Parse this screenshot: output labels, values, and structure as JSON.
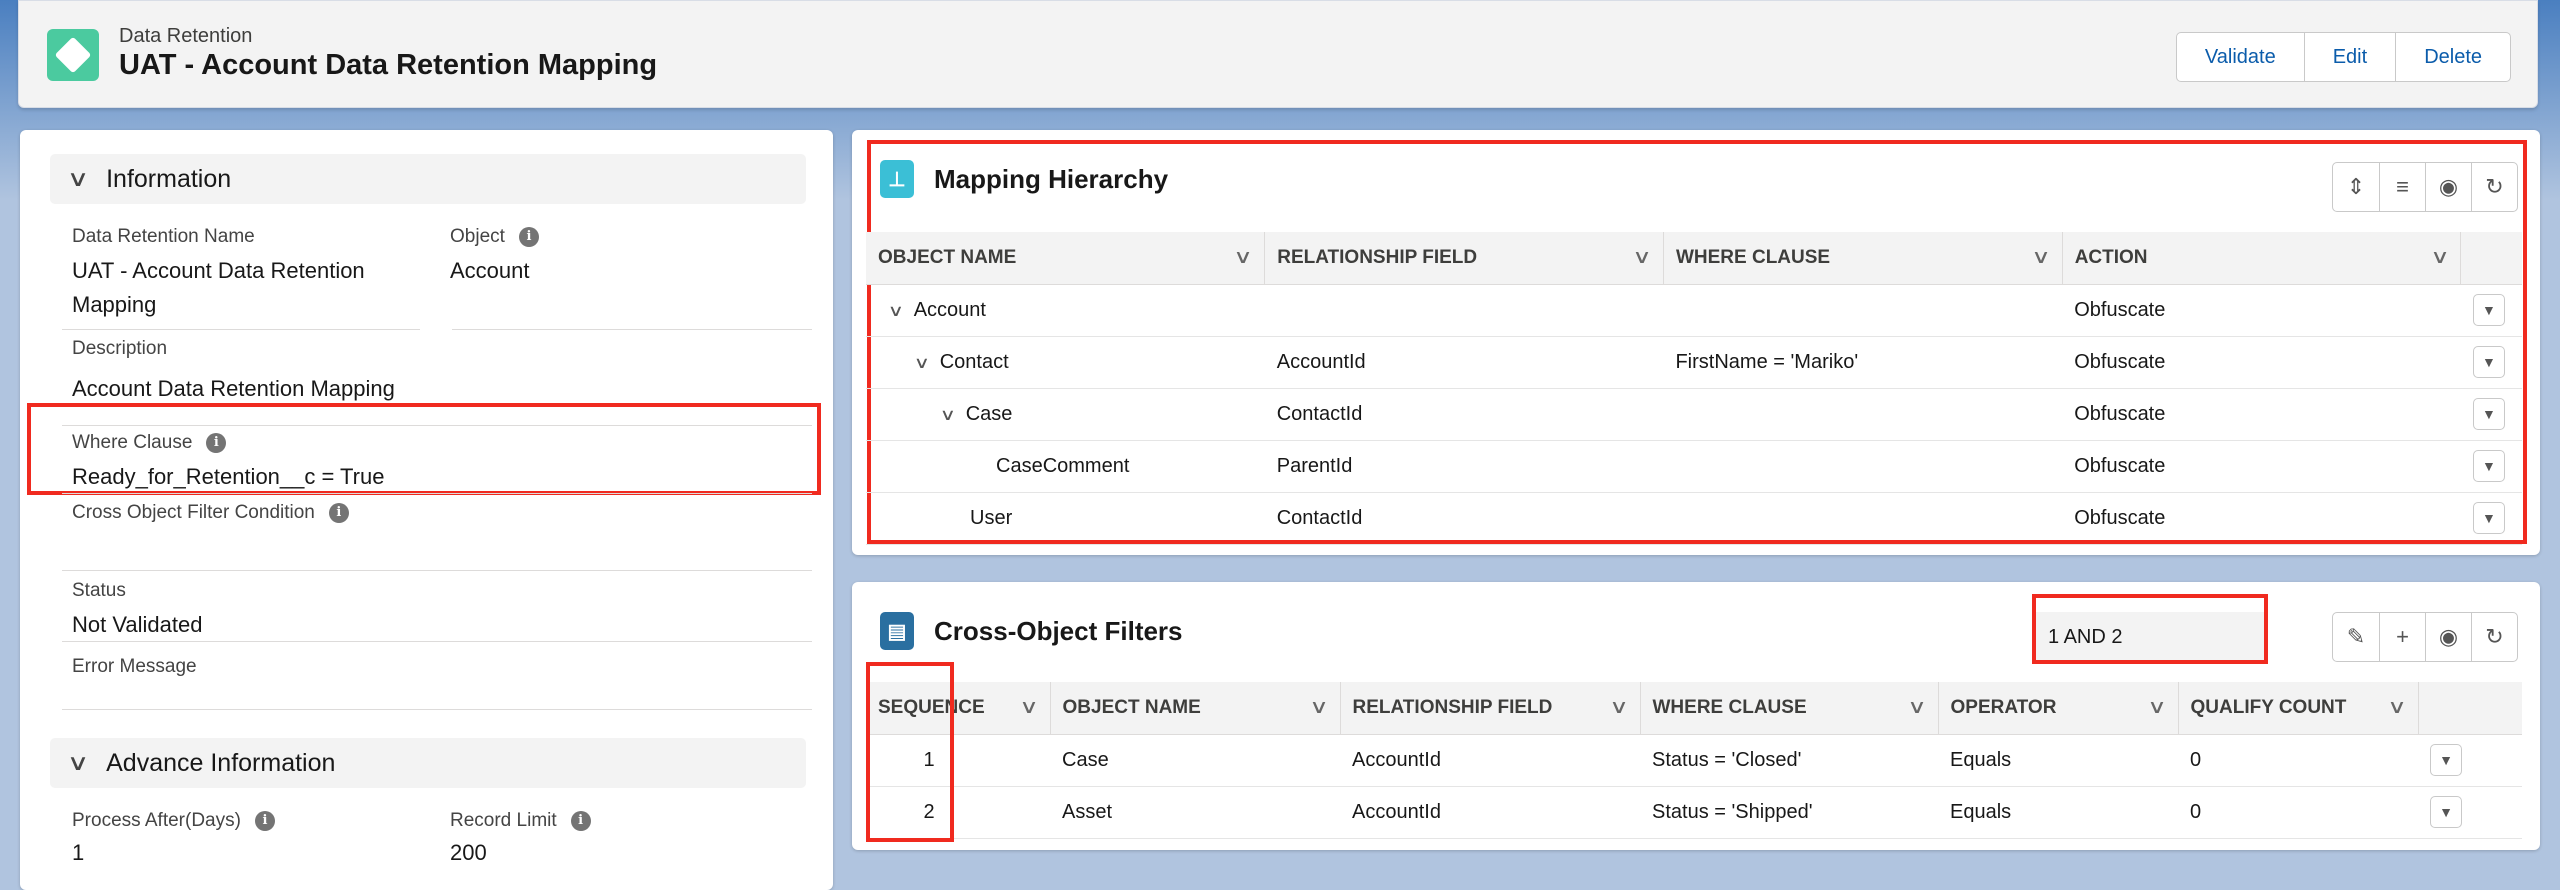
{
  "header": {
    "object_type": "Data Retention",
    "title": "UAT - Account Data Retention Mapping",
    "icon": "diamond-icon",
    "buttons": [
      "Validate",
      "Edit",
      "Delete"
    ]
  },
  "info": {
    "section_title": "Information",
    "name_label": "Data Retention Name",
    "name_value": "UAT - Account Data Retention Mapping",
    "object_label": "Object",
    "object_value": "Account",
    "description_label": "Description",
    "description_value": "Account Data Retention Mapping",
    "where_label": "Where Clause",
    "where_value": "Ready_for_Retention__c = True",
    "cross_label": "Cross Object Filter Condition",
    "cross_value": "",
    "status_label": "Status",
    "status_value": "Not Validated",
    "error_label": "Error Message",
    "error_value": ""
  },
  "advance": {
    "section_title": "Advance Information",
    "process_label": "Process After(Days)",
    "process_value": "1",
    "limit_label": "Record Limit",
    "limit_value": "200"
  },
  "mapping": {
    "title": "Mapping Hierarchy",
    "columns": [
      "OBJECT NAME",
      "RELATIONSHIP FIELD",
      "WHERE CLAUSE",
      "ACTION"
    ],
    "rows": [
      {
        "object": "Account",
        "level": 0,
        "expandable": true,
        "field": "",
        "where": "",
        "action": "Obfuscate"
      },
      {
        "object": "Contact",
        "level": 1,
        "expandable": true,
        "field": "AccountId",
        "where": "FirstName = 'Mariko'",
        "action": "Obfuscate"
      },
      {
        "object": "Case",
        "level": 2,
        "expandable": true,
        "field": "ContactId",
        "where": "",
        "action": "Obfuscate"
      },
      {
        "object": "CaseComment",
        "level": 3,
        "expandable": false,
        "field": "ParentId",
        "where": "",
        "action": "Obfuscate"
      },
      {
        "object": "User",
        "level": 2,
        "expandable": false,
        "field": "ContactId",
        "where": "",
        "action": "Obfuscate"
      }
    ]
  },
  "filters": {
    "title": "Cross-Object Filters",
    "logic": "1 AND 2",
    "columns": [
      "SEQUENCE",
      "OBJECT NAME",
      "RELATIONSHIP FIELD",
      "WHERE CLAUSE",
      "OPERATOR",
      "QUALIFY COUNT"
    ],
    "rows": [
      {
        "seq": "1",
        "object": "Case",
        "field": "AccountId",
        "where": "Status = 'Closed'",
        "operator": "Equals",
        "count": "0"
      },
      {
        "seq": "2",
        "object": "Asset",
        "field": "AccountId",
        "where": "Status = 'Shipped'",
        "operator": "Equals",
        "count": "0"
      }
    ]
  },
  "colors": {
    "highlight": "#f02a1f",
    "link": "#0b5cab",
    "app_icon": "#4bca9f",
    "hierarchy_icon": "#3bbfd6",
    "filter_icon": "#2a6fa0"
  }
}
